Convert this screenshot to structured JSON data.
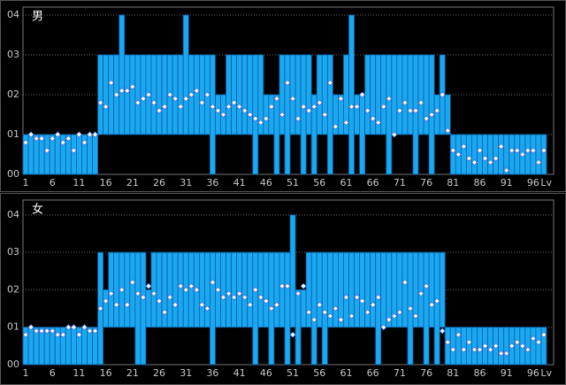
{
  "chart_data": [
    {
      "type": "rangebar",
      "title": "男",
      "xlabel": "Lv",
      "color": "#1aa8f0",
      "edge_color": "#0a5fa8",
      "marker_color": "#ffffff",
      "grid": true,
      "xlim": [
        0.5,
        98.5
      ],
      "xticks": [
        1,
        6,
        11,
        16,
        21,
        26,
        31,
        36,
        41,
        46,
        51,
        56,
        61,
        66,
        71,
        76,
        81,
        86,
        91,
        96
      ],
      "ylim": [
        0,
        4.2
      ],
      "yticks": [
        {
          "value": 0,
          "label": "00"
        },
        {
          "value": 1,
          "label": "01"
        },
        {
          "value": 2,
          "label": "02"
        },
        {
          "value": 3,
          "label": "03"
        },
        {
          "value": 4,
          "label": "04"
        }
      ],
      "x": [
        1,
        2,
        3,
        4,
        5,
        6,
        7,
        8,
        9,
        10,
        11,
        12,
        13,
        14,
        15,
        16,
        17,
        18,
        19,
        20,
        21,
        22,
        23,
        24,
        25,
        26,
        27,
        28,
        29,
        30,
        31,
        32,
        33,
        34,
        35,
        36,
        37,
        38,
        39,
        40,
        41,
        42,
        43,
        44,
        45,
        46,
        47,
        48,
        49,
        50,
        51,
        52,
        53,
        54,
        55,
        56,
        57,
        58,
        59,
        60,
        61,
        62,
        63,
        64,
        65,
        66,
        67,
        68,
        69,
        70,
        71,
        72,
        73,
        74,
        75,
        76,
        77,
        78,
        79,
        80,
        81,
        82,
        83,
        84,
        85,
        86,
        87,
        88,
        89,
        90,
        91,
        92,
        93,
        94,
        95,
        96,
        97,
        98
      ],
      "low": [
        0,
        0,
        0,
        0,
        0,
        0,
        0,
        0,
        0,
        0,
        0,
        0,
        0,
        0,
        1,
        1,
        1,
        1,
        1,
        1,
        1,
        1,
        1,
        1,
        1,
        1,
        1,
        1,
        1,
        1,
        1,
        1,
        1,
        1,
        1,
        0,
        1,
        1,
        1,
        1,
        1,
        1,
        1,
        0,
        1,
        1,
        1,
        0,
        1,
        0,
        1,
        1,
        0,
        1,
        0,
        1,
        1,
        0,
        1,
        1,
        1,
        0,
        1,
        0,
        1,
        1,
        1,
        1,
        0,
        1,
        1,
        1,
        1,
        0,
        1,
        1,
        0,
        1,
        1,
        1,
        0,
        0,
        0,
        0,
        0,
        0,
        0,
        0,
        0,
        0,
        0,
        0,
        0,
        0,
        0,
        0,
        0,
        0
      ],
      "high": [
        1,
        1,
        1,
        1,
        1,
        1,
        1,
        1,
        1,
        1,
        1,
        1,
        1,
        1,
        3,
        3,
        3,
        3,
        4,
        3,
        3,
        3,
        3,
        3,
        3,
        3,
        3,
        3,
        3,
        3,
        4,
        3,
        3,
        3,
        3,
        3,
        2,
        2,
        3,
        3,
        3,
        3,
        3,
        3,
        3,
        2,
        2,
        2,
        3,
        3,
        3,
        3,
        3,
        3,
        2,
        3,
        3,
        3,
        2,
        2,
        3,
        4,
        2,
        2,
        3,
        3,
        3,
        3,
        3,
        3,
        3,
        3,
        3,
        3,
        3,
        3,
        3,
        2,
        3,
        2,
        1,
        1,
        1,
        1,
        1,
        1,
        1,
        1,
        1,
        1,
        1,
        1,
        1,
        1,
        1,
        1,
        1,
        1
      ],
      "avg": [
        0.8,
        1,
        0.9,
        0.9,
        0.6,
        0.9,
        1,
        0.8,
        0.9,
        0.6,
        1,
        0.8,
        1,
        1,
        1.8,
        1.7,
        2.3,
        2,
        2.1,
        2.1,
        2.2,
        1.8,
        1.9,
        2,
        1.8,
        1.6,
        1.7,
        2,
        1.9,
        1.7,
        1.9,
        2,
        2.1,
        1.8,
        2,
        1.7,
        1.6,
        1.5,
        1.7,
        1.8,
        1.7,
        1.6,
        1.5,
        1.4,
        1.3,
        1.4,
        1.7,
        1.9,
        1.5,
        2.3,
        1.9,
        1.4,
        1.7,
        1.6,
        1.7,
        1.8,
        1.5,
        2.3,
        1.2,
        1.9,
        1.3,
        1.7,
        1.7,
        2,
        1.6,
        1.4,
        1.3,
        1.7,
        1.9,
        1,
        1.6,
        1.8,
        1.6,
        1.6,
        1.8,
        1.4,
        1.5,
        1.6,
        2,
        1.1,
        0.6,
        0.5,
        0.7,
        0.4,
        0.3,
        0.6,
        0.4,
        0.3,
        0.4,
        0.7,
        0.1,
        0.6,
        0.6,
        0.5,
        0.6,
        0.6,
        0.3,
        0.6
      ]
    },
    {
      "type": "rangebar",
      "title": "女",
      "xlabel": "Lv",
      "color": "#1aa8f0",
      "edge_color": "#0a5fa8",
      "marker_color": "#ffffff",
      "grid": true,
      "xlim": [
        0.5,
        98.5
      ],
      "xticks": [
        1,
        6,
        11,
        16,
        21,
        26,
        31,
        36,
        41,
        46,
        51,
        56,
        61,
        66,
        71,
        76,
        81,
        86,
        91,
        96
      ],
      "ylim": [
        0,
        4.4
      ],
      "yticks": [
        {
          "value": 0,
          "label": "00"
        },
        {
          "value": 1,
          "label": "01"
        },
        {
          "value": 2,
          "label": "02"
        },
        {
          "value": 3,
          "label": "03"
        },
        {
          "value": 4,
          "label": "04"
        }
      ],
      "x": [
        1,
        2,
        3,
        4,
        5,
        6,
        7,
        8,
        9,
        10,
        11,
        12,
        13,
        14,
        15,
        16,
        17,
        18,
        19,
        20,
        21,
        22,
        23,
        24,
        25,
        26,
        27,
        28,
        29,
        30,
        31,
        32,
        33,
        34,
        35,
        36,
        37,
        38,
        39,
        40,
        41,
        42,
        43,
        44,
        45,
        46,
        47,
        48,
        49,
        50,
        51,
        52,
        53,
        54,
        55,
        56,
        57,
        58,
        59,
        60,
        61,
        62,
        63,
        64,
        65,
        66,
        67,
        68,
        69,
        70,
        71,
        72,
        73,
        74,
        75,
        76,
        77,
        78,
        79,
        80,
        81,
        82,
        83,
        84,
        85,
        86,
        87,
        88,
        89,
        90,
        91,
        92,
        93,
        94,
        95,
        96,
        97,
        98
      ],
      "low": [
        0,
        0,
        0,
        0,
        0,
        0,
        0,
        0,
        0,
        0,
        0,
        0,
        0,
        0,
        0,
        1,
        1,
        1,
        1,
        1,
        1,
        0,
        0,
        1,
        1,
        1,
        1,
        1,
        1,
        1,
        1,
        1,
        1,
        1,
        1,
        0,
        1,
        1,
        1,
        1,
        1,
        1,
        1,
        0,
        1,
        1,
        0,
        1,
        1,
        0,
        1,
        0,
        1,
        1,
        0,
        1,
        0,
        1,
        1,
        1,
        1,
        1,
        1,
        1,
        1,
        1,
        0,
        1,
        1,
        1,
        1,
        1,
        0,
        1,
        1,
        0,
        1,
        0,
        1,
        0,
        0,
        0,
        0,
        0,
        0,
        0,
        0,
        0,
        0,
        0,
        0,
        0,
        0,
        0,
        0,
        0,
        0,
        0
      ],
      "high": [
        1,
        1,
        1,
        1,
        1,
        1,
        1,
        1,
        1,
        1,
        1,
        1,
        1,
        1,
        3,
        2,
        3,
        3,
        3,
        3,
        3,
        3,
        3,
        2,
        3,
        3,
        3,
        3,
        3,
        3,
        3,
        3,
        3,
        3,
        3,
        3,
        3,
        3,
        3,
        3,
        3,
        3,
        3,
        3,
        3,
        3,
        3,
        3,
        3,
        3,
        4,
        2,
        2,
        3,
        3,
        3,
        3,
        3,
        3,
        3,
        3,
        3,
        3,
        3,
        3,
        3,
        3,
        3,
        3,
        3,
        3,
        3,
        3,
        3,
        3,
        3,
        3,
        3,
        3,
        1,
        1,
        1,
        1,
        1,
        1,
        1,
        1,
        1,
        1,
        1,
        1,
        1,
        1,
        1,
        1,
        1,
        1,
        1
      ],
      "avg": [
        0.8,
        1,
        0.9,
        0.9,
        0.9,
        0.9,
        0.8,
        0.8,
        1,
        1,
        0.8,
        1,
        0.9,
        0.9,
        1.5,
        1.7,
        1.9,
        1.6,
        2,
        1.6,
        2.2,
        1.9,
        1.8,
        2.1,
        1.9,
        1.7,
        1.4,
        1.8,
        1.6,
        2.1,
        2,
        2.1,
        2,
        1.6,
        1.5,
        2.2,
        2,
        1.8,
        1.9,
        1.8,
        1.9,
        1.8,
        1.6,
        2,
        1.8,
        1.7,
        1.5,
        1.6,
        2.1,
        2.1,
        0.8,
        1.9,
        2.1,
        1.4,
        1.2,
        1.6,
        1.4,
        1.3,
        1.5,
        1.2,
        1.8,
        1.3,
        1.8,
        1.7,
        1.4,
        1.6,
        1.8,
        1,
        1.2,
        1.3,
        1.4,
        2.2,
        1.5,
        1.3,
        1.9,
        2.1,
        1.6,
        1.7,
        0.9,
        0.6,
        0.4,
        0.8,
        0.4,
        0.6,
        0.4,
        0.4,
        0.5,
        0.4,
        0.5,
        0.3,
        0.3,
        0.5,
        0.6,
        0.5,
        0.4,
        0.7,
        0.6,
        0.8
      ]
    }
  ]
}
